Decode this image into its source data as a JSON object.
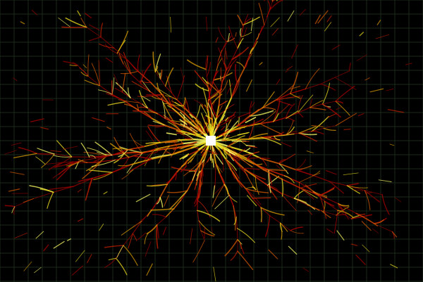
{
  "canvas": {
    "background": "#000000",
    "grid_color": "#1a2a1a"
  },
  "palette": {
    "trail_colors": [
      "#8b0000",
      "#b30000",
      "#cc2200",
      "#d45a00",
      "#e0a000",
      "#f0e020",
      "#ffff66"
    ]
  },
  "source": {
    "color": "#ffffff",
    "shape": "square"
  }
}
